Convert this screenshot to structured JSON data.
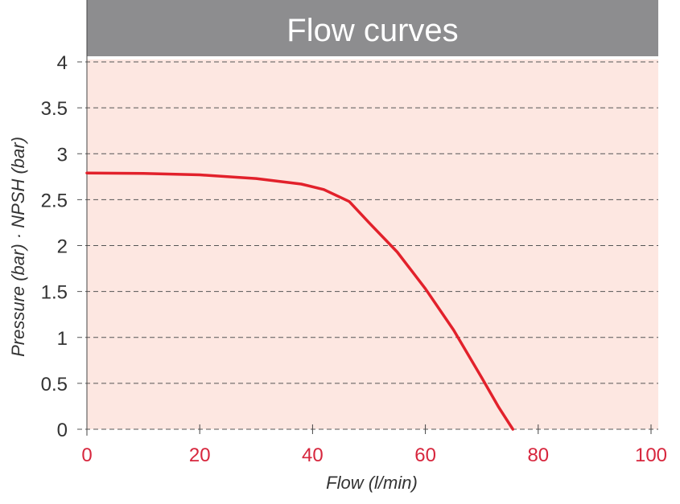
{
  "chart_data": {
    "type": "line",
    "title": "Flow curves",
    "xlabel": "Flow (l/min)",
    "ylabel": "Pressure (bar) · NPSH (bar)",
    "xlim": [
      0,
      100
    ],
    "ylim": [
      0,
      4
    ],
    "x_ticks": [
      "0",
      "20",
      "40",
      "60",
      "80",
      "100"
    ],
    "y_ticks": [
      "0",
      "0.5",
      "1",
      "1.5",
      "2",
      "2.5",
      "3",
      "3.5",
      "4"
    ],
    "grid": true,
    "legend": "none",
    "series": [
      {
        "x": [
          0,
          10,
          20,
          30,
          38,
          42,
          46.5,
          50,
          55,
          60,
          65,
          70,
          73,
          75.5
        ],
        "y": [
          2.79,
          2.785,
          2.77,
          2.73,
          2.67,
          2.61,
          2.48,
          2.25,
          1.93,
          1.53,
          1.08,
          0.56,
          0.24,
          0.0
        ]
      }
    ]
  },
  "colors": {
    "title_bar": "#8d8d8f",
    "title_text": "#ffffff",
    "plot_background": "#fde7e1",
    "grid": "#555555",
    "curve": "#e2212b",
    "x_tick_text": "#d7263d",
    "y_tick_text": "#333333",
    "axis_title_text": "#333333"
  }
}
